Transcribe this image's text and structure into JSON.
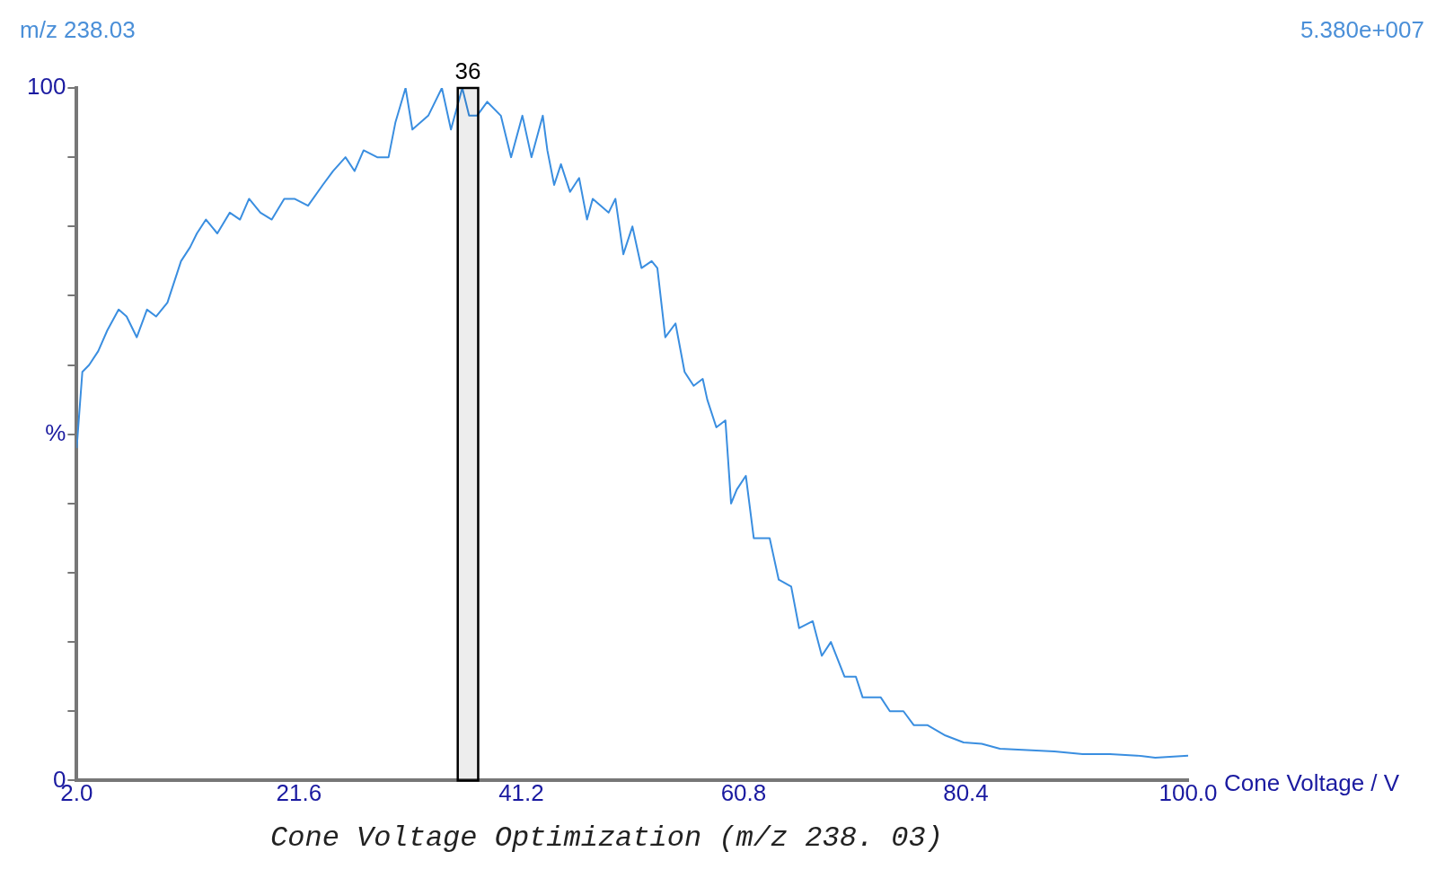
{
  "chart_data": {
    "type": "line",
    "title": "Cone Voltage Optimization (m/z 238. 03)",
    "xlabel": "Cone Voltage / V",
    "annotations": [
      "m/z 238.03",
      "5.380e+007"
    ],
    "xlim": [
      2,
      100
    ],
    "xticks": [
      {
        "value": 2,
        "label": "2.0"
      },
      21.6,
      41.2,
      60.8,
      80.4,
      {
        "value": 100,
        "label": "100.0"
      }
    ],
    "ylim": [
      0,
      100
    ],
    "yticks": [
      0,
      {
        "value": 10,
        "label": null
      },
      {
        "value": 20,
        "label": null
      },
      {
        "value": 30,
        "label": null
      },
      {
        "value": 40,
        "label": null
      },
      {
        "value": 50,
        "label": "%"
      },
      {
        "value": 60,
        "label": null
      },
      {
        "value": 70,
        "label": null
      },
      {
        "value": 80,
        "label": null
      },
      {
        "value": 90,
        "label": null
      },
      100
    ],
    "bands": [
      {
        "axis": "x",
        "from": 35.6,
        "to": 37.4,
        "label": "36",
        "color": "#000000"
      }
    ],
    "series": [
      {
        "color": "#3a8ee0",
        "x": [
          2,
          2.5,
          3.1,
          3.9,
          4.7,
          5.7,
          6.4,
          7.3,
          8.2,
          9,
          10,
          11.2,
          12,
          12.6,
          13.4,
          14.4,
          15.5,
          16.4,
          17.2,
          18.2,
          19.2,
          20.3,
          21.2,
          22.4,
          23.7,
          24.6,
          25.7,
          26.5,
          27.3,
          28.5,
          29.5,
          30.1,
          31,
          31.6,
          33,
          34.2,
          35,
          36,
          36.6,
          37.3,
          38.2,
          39.4,
          40.3,
          41.3,
          42.1,
          43.1,
          43.5,
          44.1,
          44.7,
          45.5,
          46.3,
          47,
          47.5,
          48.9,
          49.5,
          50.2,
          51,
          51.8,
          52.7,
          53.2,
          53.9,
          54.8,
          55.6,
          56.4,
          57.2,
          57.6,
          58.4,
          59.2,
          59.7,
          60.2,
          61,
          61.7,
          63.1,
          63.9,
          65,
          65.7,
          66.9,
          67.7,
          68.5,
          69.7,
          70.7,
          71.3,
          72.9,
          73.7,
          74.9,
          75.8,
          77,
          78.6,
          80.2,
          81.8,
          83.4,
          85.8,
          88.2,
          90.7,
          93.1,
          95.5,
          97.1,
          100
        ],
        "values": [
          48,
          59,
          60,
          62,
          65,
          68,
          67,
          64,
          68,
          67,
          69,
          75,
          77,
          79,
          81,
          79,
          82,
          81,
          84,
          82,
          81,
          84,
          84,
          83,
          86,
          88,
          90,
          88,
          91,
          90,
          90,
          95,
          100,
          94,
          96,
          100,
          94,
          100,
          96,
          96,
          98,
          96,
          90,
          96,
          90,
          96,
          91,
          86,
          89,
          85,
          87,
          81,
          84,
          82,
          84,
          76,
          80,
          74,
          75,
          74,
          64,
          66,
          59,
          57,
          58,
          55,
          51,
          52,
          40,
          42,
          44,
          35,
          35,
          29,
          28,
          22,
          23,
          18,
          20,
          15,
          15,
          12,
          12,
          10,
          10,
          8,
          8,
          6.5,
          5.5,
          5.3,
          4.6,
          4.4,
          4.2,
          3.8,
          3.8,
          3.6,
          3.3,
          3.6
        ]
      }
    ]
  }
}
